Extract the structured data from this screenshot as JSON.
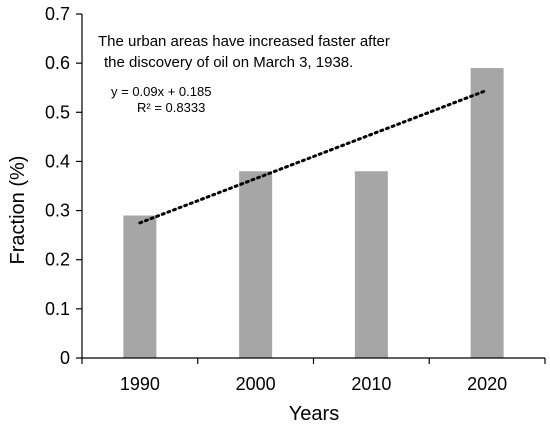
{
  "chart_data": {
    "type": "bar",
    "categories": [
      "1990",
      "2000",
      "2010",
      "2020"
    ],
    "values": [
      0.29,
      0.38,
      0.38,
      0.59
    ],
    "xlabel": "Years",
    "ylabel": "Fraction (%)",
    "ylim": [
      0,
      0.7
    ],
    "yticks": [
      "0",
      "0.1",
      "0.2",
      "0.3",
      "0.4",
      "0.5",
      "0.6",
      "0.7"
    ],
    "bar_color": "#a6a6a6",
    "grid": false,
    "annotation_lines": [
      "The urban areas have increased faster after",
      "the discovery of oil on March 3, 1938."
    ],
    "trendline": {
      "style": "dotted",
      "slope": 0.09,
      "intercept": 0.185,
      "equation": "y = 0.09x + 0.185",
      "r_squared": "R² = 0.8333"
    }
  }
}
